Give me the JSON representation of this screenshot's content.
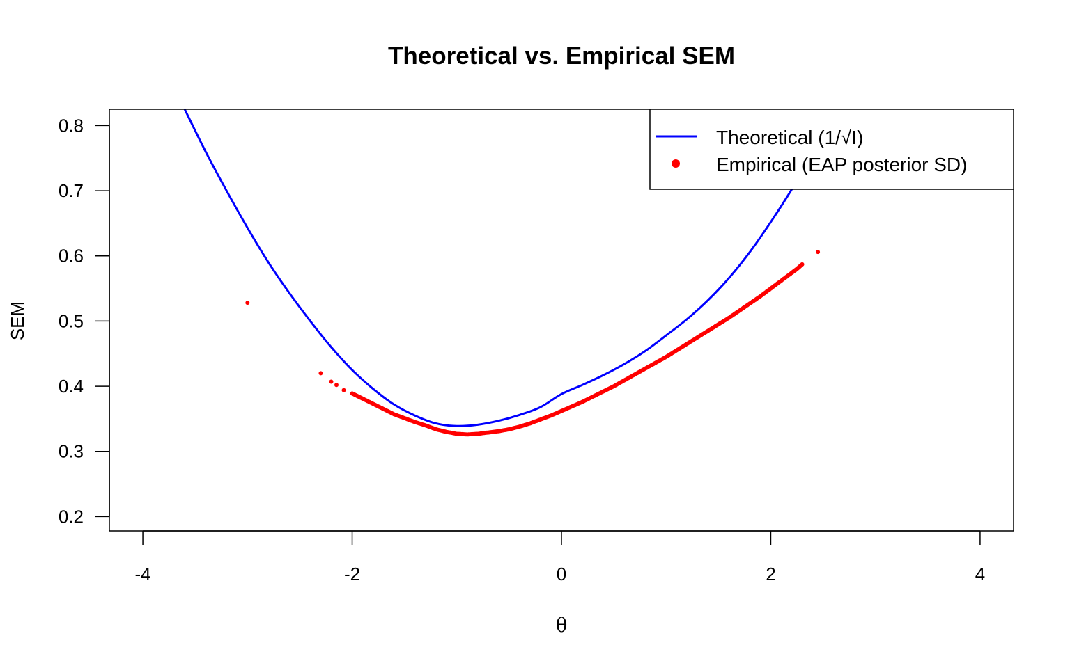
{
  "chart_data": {
    "type": "scatter",
    "title": "Theoretical vs. Empirical SEM",
    "xlabel": "θ",
    "ylabel": "SEM",
    "xlim": [
      -4.32,
      4.32
    ],
    "ylim": [
      0.178,
      0.825
    ],
    "xticks": [
      -4,
      -2,
      0,
      2,
      4
    ],
    "xtick_labels": [
      "-4",
      "-2",
      "0",
      "2",
      "4"
    ],
    "yticks": [
      0.2,
      0.3,
      0.4,
      0.5,
      0.6,
      0.7,
      0.8
    ],
    "ytick_labels": [
      "0.2",
      "0.3",
      "0.4",
      "0.5",
      "0.6",
      "0.7",
      "0.8"
    ],
    "grid": false,
    "legend_position": "top-right",
    "legend": [
      "Theoretical (1/√I)",
      "Empirical (EAP posterior SD)"
    ],
    "colors": {
      "theoretical": "#0000ff",
      "empirical": "#ff0000"
    },
    "series": [
      {
        "name": "Theoretical (1/√I)",
        "type": "line",
        "x": [
          -3.6,
          -3.4,
          -3.2,
          -3.0,
          -2.8,
          -2.6,
          -2.4,
          -2.2,
          -2.0,
          -1.8,
          -1.6,
          -1.4,
          -1.2,
          -1.0,
          -0.8,
          -0.6,
          -0.4,
          -0.2,
          0.0,
          0.2,
          0.4,
          0.6,
          0.8,
          1.0,
          1.2,
          1.4,
          1.6,
          1.8,
          2.0,
          2.2,
          2.4,
          2.6
        ],
        "y": [
          0.825,
          0.76,
          0.7,
          0.643,
          0.59,
          0.543,
          0.5,
          0.46,
          0.425,
          0.396,
          0.372,
          0.355,
          0.343,
          0.339,
          0.341,
          0.347,
          0.356,
          0.368,
          0.388,
          0.402,
          0.417,
          0.434,
          0.454,
          0.478,
          0.503,
          0.532,
          0.566,
          0.606,
          0.652,
          0.702,
          0.757,
          0.82
        ]
      },
      {
        "name": "Empirical (EAP posterior SD)",
        "type": "scatter",
        "x": [
          -3.0,
          -2.3,
          -2.2,
          -2.15,
          -2.08,
          -2.0,
          -1.95,
          -1.9,
          -1.8,
          -1.7,
          -1.6,
          -1.5,
          -1.4,
          -1.3,
          -1.2,
          -1.1,
          -1.0,
          -0.9,
          -0.8,
          -0.7,
          -0.6,
          -0.5,
          -0.4,
          -0.3,
          -0.2,
          -0.1,
          0.0,
          0.1,
          0.2,
          0.3,
          0.4,
          0.5,
          0.6,
          0.7,
          0.8,
          0.9,
          1.0,
          1.1,
          1.2,
          1.3,
          1.4,
          1.5,
          1.6,
          1.7,
          1.8,
          1.9,
          2.0,
          2.1,
          2.2,
          2.25,
          2.3,
          2.45
        ],
        "y": [
          0.528,
          0.42,
          0.407,
          0.402,
          0.394,
          0.389,
          0.385,
          0.381,
          0.373,
          0.365,
          0.357,
          0.351,
          0.345,
          0.34,
          0.334,
          0.33,
          0.327,
          0.326,
          0.327,
          0.329,
          0.331,
          0.334,
          0.338,
          0.343,
          0.349,
          0.355,
          0.362,
          0.369,
          0.376,
          0.384,
          0.392,
          0.4,
          0.409,
          0.418,
          0.427,
          0.436,
          0.445,
          0.455,
          0.465,
          0.475,
          0.485,
          0.495,
          0.505,
          0.516,
          0.527,
          0.538,
          0.55,
          0.562,
          0.574,
          0.58,
          0.587,
          0.606
        ]
      }
    ]
  }
}
